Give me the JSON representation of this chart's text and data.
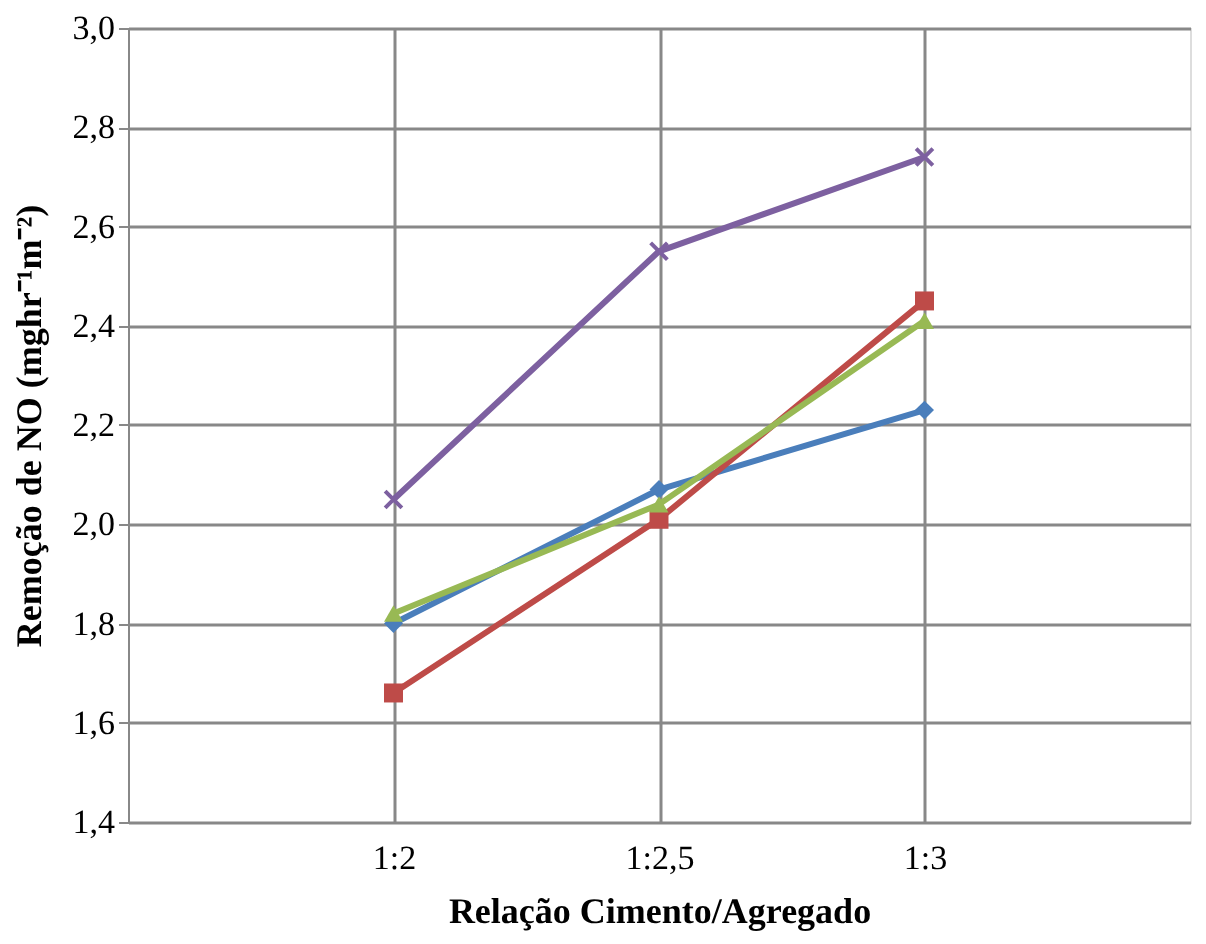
{
  "chart_data": {
    "type": "line",
    "xlabel": "Relação Cimento/Agregado",
    "ylabel": "Remoção de NO (mghr⁻¹m⁻²)",
    "categories": [
      "1:2",
      "1:2,5",
      "1:3"
    ],
    "series": [
      {
        "color": "#4a7ebb",
        "marker": "diamond",
        "values": [
          1.8,
          2.07,
          2.23
        ]
      },
      {
        "color": "#be4b48",
        "marker": "square",
        "values": [
          1.66,
          2.01,
          2.45
        ]
      },
      {
        "color": "#98b954",
        "marker": "triangle",
        "values": [
          1.82,
          2.04,
          2.41
        ]
      },
      {
        "color": "#7d60a0",
        "marker": "cross",
        "values": [
          2.05,
          2.55,
          2.74
        ]
      }
    ],
    "ylim": [
      1.4,
      3.0
    ],
    "yticks": [
      {
        "value": 1.4,
        "label": "1,4"
      },
      {
        "value": 1.6,
        "label": "1,6"
      },
      {
        "value": 1.8,
        "label": "1,8"
      },
      {
        "value": 2.0,
        "label": "2,0"
      },
      {
        "value": 2.2,
        "label": "2,2"
      },
      {
        "value": 2.4,
        "label": "2,4"
      },
      {
        "value": 2.6,
        "label": "2,6"
      },
      {
        "value": 2.8,
        "label": "2,8"
      },
      {
        "value": 3.0,
        "label": "3,0"
      }
    ],
    "grid": true,
    "line_style": "solid"
  }
}
